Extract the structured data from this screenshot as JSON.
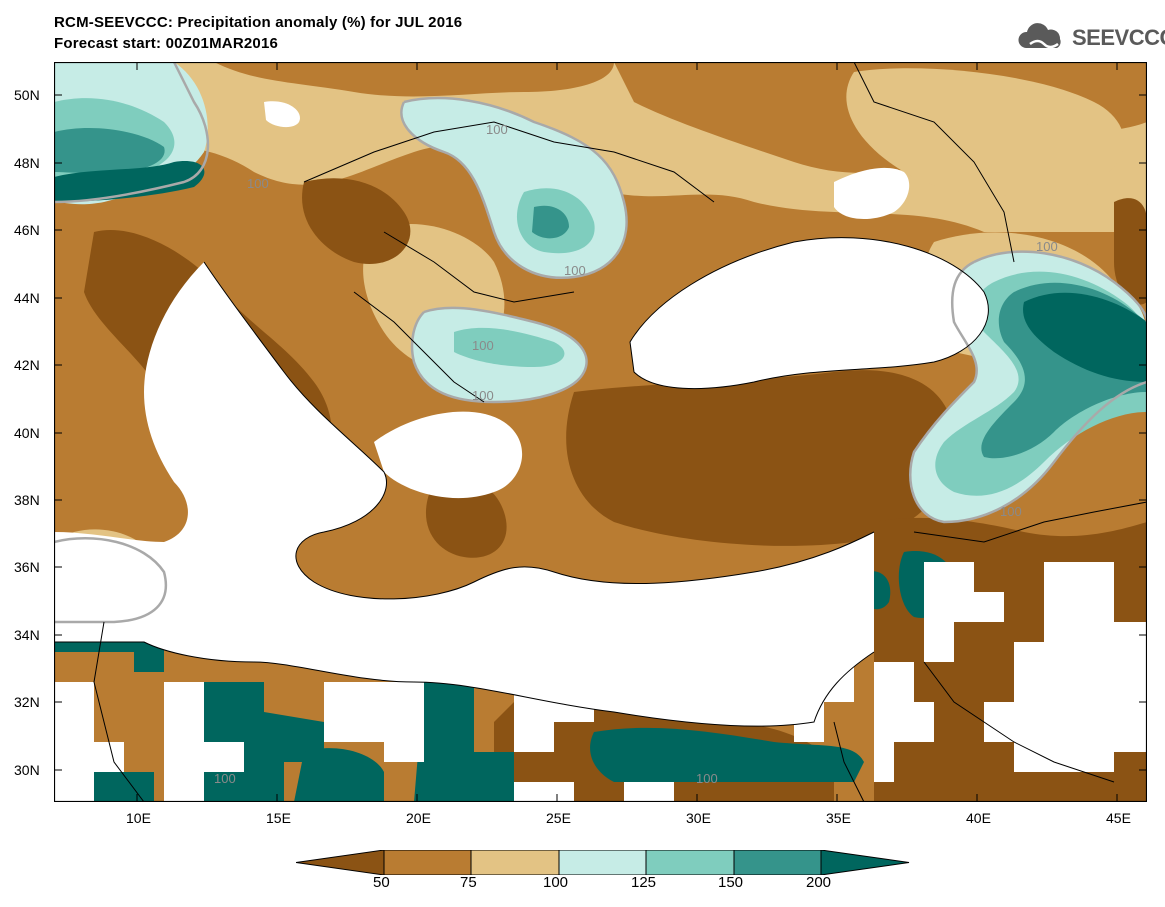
{
  "header": {
    "title": "RCM-SEEVCCC: Precipitation anomaly (%) for JUL 2016",
    "subtitle": "Forecast start: 00Z01MAR2016",
    "logo_text": "SEEVCCC"
  },
  "map": {
    "lat_labels": [
      "50N",
      "48N",
      "46N",
      "44N",
      "42N",
      "40N",
      "38N",
      "36N",
      "34N",
      "32N",
      "30N"
    ],
    "lon_labels": [
      "10E",
      "15E",
      "20E",
      "25E",
      "30E",
      "35E",
      "40E",
      "45E"
    ],
    "contour_labels": [
      "100",
      "100",
      "100",
      "100",
      "100",
      "100",
      "100",
      "100",
      "100",
      "100"
    ]
  },
  "legend": {
    "ticks": [
      "50",
      "75",
      "100",
      "125",
      "150",
      "200"
    ],
    "colors": [
      "#8b5314",
      "#b97c32",
      "#e3c384",
      "#c6ece6",
      "#7fcdbe",
      "#35948b",
      "#00665e"
    ]
  }
}
